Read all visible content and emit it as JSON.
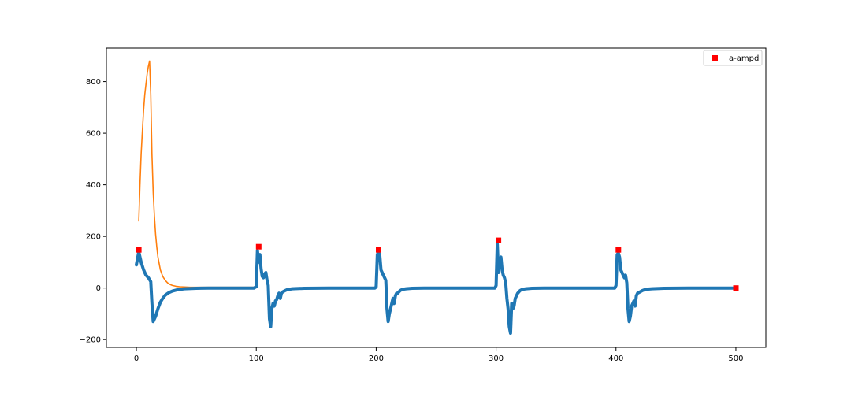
{
  "chart_data": {
    "type": "line",
    "title": "",
    "xlabel": "",
    "ylabel": "",
    "xlim": [
      -25,
      525
    ],
    "ylim": [
      -230,
      930
    ],
    "x_ticks": [
      0,
      100,
      200,
      300,
      400,
      500
    ],
    "y_ticks": [
      -200,
      0,
      200,
      400,
      600,
      800
    ],
    "grid": false,
    "legend": {
      "placement": "top-right",
      "entries": [
        "a-ampd"
      ]
    },
    "colors": {
      "signal": "#1f77b4",
      "envelope": "#ff7f0e",
      "peaks": "#ff0000"
    },
    "series": [
      {
        "role": "signal",
        "x": [
          0,
          2,
          4,
          6,
          8,
          10,
          12,
          13,
          14,
          16,
          18,
          20,
          22,
          24,
          27,
          30,
          35,
          40,
          50,
          60,
          70,
          80,
          90,
          98,
          100,
          101,
          102,
          103,
          104,
          105,
          106,
          107,
          108,
          109,
          110,
          111,
          112,
          113,
          114,
          115,
          116,
          117,
          118,
          119,
          120,
          121,
          122,
          124,
          126,
          130,
          140,
          160,
          180,
          199,
          200,
          201,
          202,
          203,
          204,
          205,
          206,
          207,
          208,
          209,
          210,
          211,
          212,
          213,
          214,
          215,
          216,
          217,
          218,
          220,
          222,
          225,
          230,
          240,
          260,
          280,
          299,
          300,
          301,
          302,
          303,
          304,
          305,
          306,
          307,
          308,
          309,
          310,
          311,
          312,
          313,
          314,
          315,
          316,
          317,
          318,
          319,
          320,
          322,
          325,
          330,
          340,
          360,
          380,
          399,
          400,
          401,
          402,
          403,
          404,
          405,
          406,
          407,
          408,
          409,
          410,
          411,
          412,
          413,
          414,
          415,
          416,
          417,
          418,
          420,
          422,
          425,
          430,
          440,
          460,
          480,
          500
        ],
        "y": [
          90,
          140,
          100,
          70,
          50,
          40,
          25,
          -60,
          -130,
          -110,
          -80,
          -55,
          -40,
          -28,
          -18,
          -12,
          -6,
          -3,
          -1,
          0,
          0,
          0,
          0,
          0,
          5,
          145,
          100,
          130,
          75,
          45,
          40,
          55,
          60,
          30,
          10,
          -120,
          -150,
          -80,
          -60,
          -70,
          -50,
          -45,
          -30,
          -20,
          -40,
          -20,
          -15,
          -10,
          -6,
          -3,
          -1,
          0,
          0,
          0,
          5,
          130,
          140,
          125,
          70,
          60,
          50,
          40,
          30,
          -80,
          -130,
          -100,
          -80,
          -60,
          -40,
          -60,
          -30,
          -20,
          -20,
          -10,
          -5,
          -3,
          -1,
          0,
          0,
          0,
          0,
          10,
          170,
          60,
          110,
          120,
          70,
          50,
          40,
          20,
          -40,
          -80,
          -150,
          -175,
          -60,
          -80,
          -70,
          -40,
          -30,
          -20,
          -15,
          -10,
          -5,
          -3,
          -1,
          0,
          0,
          0,
          0,
          10,
          130,
          135,
          120,
          70,
          60,
          50,
          40,
          50,
          20,
          -80,
          -130,
          -110,
          -70,
          -60,
          -50,
          -70,
          -30,
          -20,
          -15,
          -10,
          -5,
          -3,
          -1,
          0,
          0,
          0
        ]
      },
      {
        "role": "envelope",
        "x": [
          2,
          3,
          4,
          5,
          6,
          7,
          8,
          9,
          10,
          11,
          12,
          13,
          14,
          15,
          16,
          17,
          18,
          20,
          22,
          24,
          26,
          28,
          30,
          33,
          36,
          40,
          45,
          50,
          60,
          80,
          98,
          99,
          100,
          101
        ],
        "y": [
          260,
          400,
          520,
          610,
          690,
          750,
          790,
          830,
          860,
          880,
          750,
          520,
          370,
          280,
          210,
          160,
          120,
          70,
          45,
          30,
          20,
          14,
          10,
          7,
          5,
          4,
          3,
          3,
          3,
          3,
          3,
          5,
          20,
          80
        ]
      },
      {
        "name": "a-ampd",
        "role": "peaks",
        "x": [
          2,
          102,
          202,
          302,
          402,
          500
        ],
        "y": [
          148,
          160,
          148,
          185,
          148,
          0
        ]
      }
    ]
  }
}
